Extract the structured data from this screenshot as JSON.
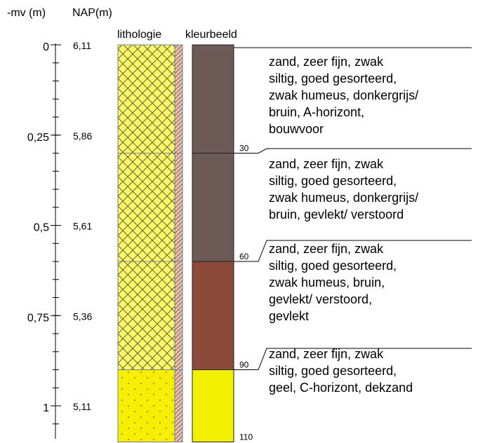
{
  "headers": {
    "depth": "-mv (m)",
    "nap": "NAP(m)",
    "lithology": "lithologie",
    "color": "kleurbeeld"
  },
  "ticks": [
    {
      "depth": 0,
      "depth_label": "0",
      "nap_label": "6,11"
    },
    {
      "depth": 0.25,
      "depth_label": "0,25",
      "nap_label": "5,86"
    },
    {
      "depth": 0.5,
      "depth_label": "0,5",
      "nap_label": "5,61"
    },
    {
      "depth": 0.75,
      "depth_label": "0,75",
      "nap_label": "5,36"
    },
    {
      "depth": 1.0,
      "depth_label": "1",
      "nap_label": "5,11"
    }
  ],
  "minor_tick_step": 0.05,
  "depth_range_m": [
    0,
    1.1
  ],
  "layers": [
    {
      "top_cm": 0,
      "bottom_cm": 30,
      "bottom_label": "30",
      "lithology": "sand-crosshatch",
      "color": "#6b5a55",
      "description": [
        "zand, zeer fijn, zwak",
        "siltig, goed gesorteerd,",
        "zwak humeus, donkergrijs/",
        "bruin, A-horizont,",
        "bouwvoor"
      ]
    },
    {
      "top_cm": 30,
      "bottom_cm": 60,
      "bottom_label": "60",
      "lithology": "sand-crosshatch",
      "color": "#6b5a55",
      "description": [
        "zand, zeer fijn, zwak",
        "siltig, goed gesorteerd,",
        "zwak humeus, donkergrijs/",
        "bruin, gevlekt/ verstoord"
      ]
    },
    {
      "top_cm": 60,
      "bottom_cm": 90,
      "bottom_label": "90",
      "lithology": "sand-crosshatch",
      "color": "#8b4a3a",
      "description": [
        "zand, zeer fijn, zwak",
        "siltig, goed gesorteerd,",
        "zwak humeus, bruin,",
        "gevlekt/ verstoord,",
        "gevlekt"
      ]
    },
    {
      "top_cm": 90,
      "bottom_cm": 110,
      "bottom_label": "110",
      "lithology": "sand-dotted",
      "color": "#f0f000",
      "description": [
        "zand, zeer fijn, zwak",
        "siltig, goed gesorteerd,",
        "geel, C-horizont, dekzand"
      ]
    }
  ]
}
